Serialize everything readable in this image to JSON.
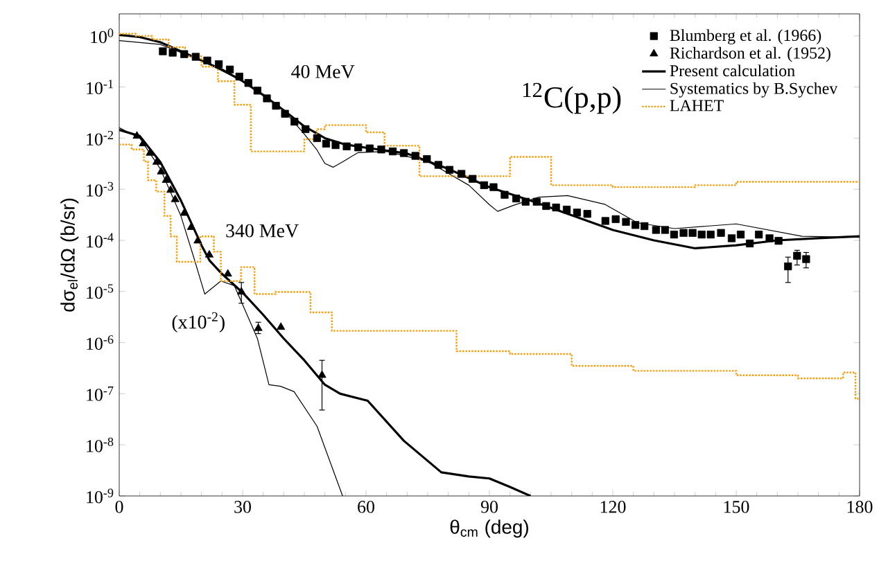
{
  "chart_data": {
    "type": "line",
    "title": "$^{12}$C(p,p)",
    "xlabel": "θ$_{cm}$ (deg)",
    "ylabel": "dσ$_{el}$/dΩ (b/sr)",
    "log": "y",
    "xlim": [
      0,
      180
    ],
    "ylim": [
      1e-09,
      2.7
    ],
    "xticks": [
      0,
      30,
      60,
      90,
      120,
      150,
      180
    ],
    "yticks": [
      {
        "value": 1,
        "label": "10$^{0}$"
      },
      {
        "value": 0.1,
        "label": "10$^{-1}$"
      },
      {
        "value": 0.01,
        "label": "10$^{-2}$"
      },
      {
        "value": 0.001,
        "label": "10$^{-3}$"
      },
      {
        "value": 0.0001,
        "label": "10$^{-4}$"
      },
      {
        "value": 1e-05,
        "label": "10$^{-5}$"
      },
      {
        "value": 1e-06,
        "label": "10$^{-6}$"
      },
      {
        "value": 1e-07,
        "label": "10$^{-7}$"
      },
      {
        "value": 1e-08,
        "label": "10$^{-8}$"
      },
      {
        "value": 1e-09,
        "label": "10$^{-9}$"
      }
    ],
    "legend": "top right",
    "grid": false,
    "annotations": [
      "40 MeV",
      "340 MeV",
      "(x10$^{-2}$)"
    ],
    "series": [
      {
        "name": "Blumberg et al. (1966)",
        "type": "scatter",
        "marker": "square",
        "color": "#000000",
        "x": [
          10.6,
          13.0,
          15.8,
          18.6,
          21.4,
          24.2,
          26.9,
          29.2,
          31.4,
          33.6,
          35.9,
          38.1,
          40.3,
          42.6,
          45.3,
          48.1,
          50.3,
          52.6,
          55.3,
          58.1,
          60.9,
          63.7,
          66.5,
          69.2,
          72.0,
          74.8,
          77.6,
          80.3,
          83.2,
          85.9,
          88.7,
          91.0,
          93.7,
          96.5,
          98.8,
          101.5,
          103.8,
          106.2,
          108.8,
          111.3,
          113.8,
          118.2,
          120.7,
          123.2,
          125.5,
          127.7,
          130.5,
          132.7,
          134.9,
          137.2,
          139.4,
          141.6,
          143.8,
          146.3,
          148.9,
          151.1,
          153.3,
          155.5,
          158.1,
          160.3,
          162.6,
          164.8,
          167.0
        ],
        "values": [
          0.5,
          0.47,
          0.44,
          0.39,
          0.33,
          0.28,
          0.22,
          0.16,
          0.12,
          0.085,
          0.06,
          0.043,
          0.03,
          0.021,
          0.015,
          0.01,
          0.0078,
          0.0073,
          0.0069,
          0.0066,
          0.0063,
          0.006,
          0.0055,
          0.0051,
          0.0045,
          0.0039,
          0.003,
          0.0024,
          0.002,
          0.0016,
          0.0012,
          0.0011,
          0.00078,
          0.00066,
          0.00057,
          0.00057,
          0.00047,
          0.00044,
          0.0004,
          0.00035,
          0.00033,
          0.00024,
          0.00026,
          0.00023,
          0.0002,
          0.00019,
          0.00016,
          0.00016,
          0.00013,
          0.00014,
          0.00014,
          0.00013,
          0.00013,
          0.00014,
          0.00011,
          0.00013,
          8.7e-05,
          0.00013,
          0.00011,
          9.8e-05,
          3.1e-05,
          5e-05,
          4.3e-05
        ],
        "errors": [
          null,
          null,
          null,
          null,
          null,
          null,
          null,
          null,
          null,
          null,
          null,
          null,
          null,
          null,
          null,
          null,
          null,
          null,
          null,
          null,
          null,
          null,
          null,
          null,
          null,
          null,
          null,
          null,
          null,
          null,
          null,
          null,
          null,
          null,
          null,
          null,
          null,
          null,
          null,
          null,
          null,
          null,
          null,
          null,
          null,
          null,
          null,
          null,
          null,
          null,
          null,
          null,
          null,
          null,
          null,
          null,
          null,
          null,
          null,
          null,
          [
            1.5e-05,
            4.7e-05
          ],
          [
            3.3e-05,
            6.4e-05
          ],
          [
            2.9e-05,
            5.8e-05
          ]
        ]
      },
      {
        "name": "Richardson et al. (1952)",
        "type": "scatter",
        "marker": "triangle",
        "color": "#000000",
        "x": [
          4.3,
          5.8,
          7.5,
          9.1,
          10.2,
          11.4,
          12.5,
          13.6,
          15.8,
          17.5,
          19.1,
          21.9,
          26.4,
          29.7,
          33.8,
          39.3,
          49.3
        ],
        "values": [
          0.011,
          0.0078,
          0.0051,
          0.0034,
          0.0022,
          0.0015,
          0.00096,
          0.00063,
          0.00034,
          0.00018,
          9.8e-05,
          5.2e-05,
          2.2e-05,
          9.8e-06,
          1.9e-06,
          2e-06,
          2.3e-07
        ],
        "errors": [
          null,
          null,
          null,
          null,
          null,
          null,
          null,
          null,
          null,
          null,
          null,
          null,
          null,
          [
            5.9e-06,
            1.5e-05
          ],
          [
            1.5e-06,
            2.5e-06
          ],
          null,
          [
            4.8e-08,
            4.5e-07
          ]
        ]
      },
      {
        "name": "Present calculation",
        "marker": "none",
        "line_style": "solid",
        "color": "#000000",
        "x": [
          0,
          5,
          10,
          15,
          20,
          25,
          30,
          35,
          40,
          45,
          50,
          55,
          60,
          70,
          80,
          90,
          100,
          110,
          120,
          130,
          140,
          150,
          160,
          170,
          180,
          null,
          0,
          5,
          10,
          15,
          18,
          20,
          22,
          25,
          30,
          35,
          40,
          45,
          50,
          53.7,
          60.4,
          69.2,
          78.3,
          85,
          90,
          95,
          100
        ],
        "values": [
          1.05,
          0.95,
          0.75,
          0.5,
          0.33,
          0.22,
          0.13,
          0.07,
          0.035,
          0.017,
          0.01,
          0.0075,
          0.0065,
          0.005,
          0.0025,
          0.0011,
          0.0006,
          0.00031,
          0.00016,
          0.0001,
          7e-05,
          8e-05,
          0.0001,
          0.00011,
          0.00012,
          null,
          0.0145,
          0.011,
          0.0034,
          0.0006,
          0.00018,
          8e-05,
          4e-05,
          2.2e-05,
          9.5e-06,
          3.5e-06,
          1.2e-06,
          4.5e-07,
          1.5e-07,
          1e-07,
          7.3e-08,
          1.2e-08,
          2.9e-09,
          2.4e-09,
          2.2e-09,
          1.5e-09,
          1e-09
        ]
      },
      {
        "name": "Systematics by B.Sychev",
        "marker": "none",
        "line_style": "solid",
        "color": "#000000",
        "x": [
          0,
          10,
          20,
          30,
          40,
          45,
          48,
          50,
          52,
          55,
          58,
          65,
          75,
          85,
          90,
          92,
          96,
          102,
          109,
          118,
          126,
          135,
          150,
          166,
          180,
          null,
          0,
          5,
          10,
          15,
          18,
          20.8,
          24.7,
          28,
          33.6,
          36.4,
          39.2,
          42.5,
          48.1,
          54.3
        ],
        "values": [
          0.81,
          0.68,
          0.33,
          0.13,
          0.035,
          0.012,
          0.006,
          0.0032,
          0.0027,
          0.0037,
          0.0052,
          0.0055,
          0.0035,
          0.0012,
          0.0005,
          0.00037,
          0.00049,
          0.0007,
          0.00075,
          0.00051,
          0.00022,
          0.00017,
          0.00021,
          0.00012,
          0.000115,
          null,
          0.016,
          0.01,
          0.0025,
          0.0003,
          5e-05,
          8.9e-06,
          1.6e-05,
          1.3e-05,
          1.2e-06,
          1.5e-07,
          1.4e-07,
          1.1e-07,
          2.3e-08,
          1e-09
        ]
      },
      {
        "name": "LAHET",
        "type": "step",
        "marker": "none",
        "line_style": "dotted",
        "color": "#ff9900",
        "x": [
          0,
          4,
          8,
          12,
          16,
          20,
          24,
          28,
          32,
          45,
          48,
          50,
          60,
          64.5,
          73,
          95,
          105,
          120,
          140,
          150,
          180,
          null,
          0,
          3,
          6,
          7,
          9,
          11,
          12.5,
          14,
          19.7,
          23,
          24.7,
          29.6,
          32.9,
          38,
          46.5,
          51.7,
          82,
          95,
          110,
          125,
          150,
          165,
          176,
          179,
          180
        ],
        "values": [
          1.1,
          1.0,
          0.85,
          0.6,
          0.4,
          0.25,
          0.13,
          0.045,
          0.0055,
          0.0095,
          0.015,
          0.018,
          0.013,
          0.0071,
          0.0018,
          0.0043,
          0.0012,
          0.0011,
          0.0012,
          0.0014,
          0.0014,
          null,
          0.0075,
          0.006,
          0.0035,
          0.0015,
          0.0009,
          0.0003,
          0.00012,
          3.8e-05,
          0.00012,
          6e-05,
          1.6e-05,
          3e-05,
          8.9e-06,
          9.8e-06,
          3.9e-06,
          1.7e-06,
          6.8e-07,
          6e-07,
          3.5e-07,
          2.8e-07,
          2.3e-07,
          2e-07,
          2.6e-07,
          8e-08,
          8e-08
        ]
      }
    ]
  }
}
